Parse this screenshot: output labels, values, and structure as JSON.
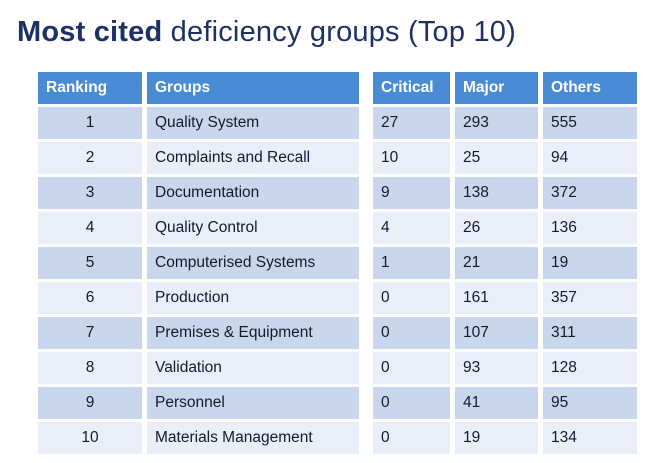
{
  "title": {
    "bold": "Most cited",
    "rest": " deficiency groups (Top 10)"
  },
  "left_table": {
    "headers": [
      "Ranking",
      "Groups"
    ],
    "rows": [
      [
        "1",
        "Quality System"
      ],
      [
        "2",
        "Complaints and Recall"
      ],
      [
        "3",
        "Documentation"
      ],
      [
        "4",
        "Quality Control"
      ],
      [
        "5",
        "Computerised Systems"
      ],
      [
        "6",
        "Production"
      ],
      [
        "7",
        "Premises & Equipment"
      ],
      [
        "8",
        "Validation"
      ],
      [
        "9",
        "Personnel"
      ],
      [
        "10",
        "Materials Management"
      ]
    ]
  },
  "right_table": {
    "headers": [
      "Critical",
      "Major",
      "Others"
    ],
    "rows": [
      [
        "27",
        "293",
        "555"
      ],
      [
        "10",
        "25",
        "94"
      ],
      [
        "9",
        "138",
        "372"
      ],
      [
        "4",
        "26",
        "136"
      ],
      [
        "1",
        "21",
        "19"
      ],
      [
        "0",
        "161",
        "357"
      ],
      [
        "0",
        "107",
        "311"
      ],
      [
        "0",
        "93",
        "128"
      ],
      [
        "0",
        "41",
        "95"
      ],
      [
        "0",
        "19",
        "134"
      ]
    ]
  },
  "chart_data": {
    "type": "table",
    "title": "Most cited deficiency groups (Top 10)",
    "columns": [
      "Ranking",
      "Groups",
      "Critical",
      "Major",
      "Others"
    ],
    "rows": [
      [
        1,
        "Quality System",
        27,
        293,
        555
      ],
      [
        2,
        "Complaints and Recall",
        10,
        25,
        94
      ],
      [
        3,
        "Documentation",
        9,
        138,
        372
      ],
      [
        4,
        "Quality Control",
        4,
        26,
        136
      ],
      [
        5,
        "Computerised Systems",
        1,
        21,
        19
      ],
      [
        6,
        "Production",
        0,
        161,
        357
      ],
      [
        7,
        "Premises & Equipment",
        0,
        107,
        311
      ],
      [
        8,
        "Validation",
        0,
        93,
        128
      ],
      [
        9,
        "Personnel",
        0,
        41,
        95
      ],
      [
        10,
        "Materials Management",
        0,
        19,
        134
      ]
    ]
  },
  "colors": {
    "title_text": "#1E3166",
    "header_bg": "#4A8CD3",
    "header_text": "#FFFFFF",
    "band_dark": "#C9D6EC",
    "band_light": "#E9EEF8",
    "cell_text": "#121A30",
    "background": "#FFFFFF"
  }
}
